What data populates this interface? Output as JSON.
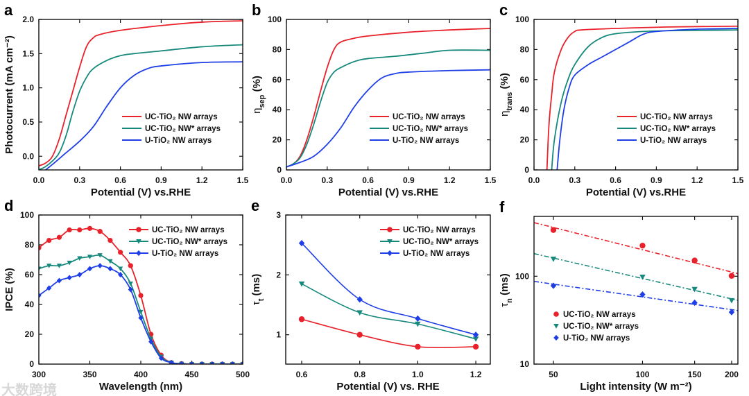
{
  "colors": {
    "red": "#e8212a",
    "teal": "#16897c",
    "blue": "#1f3fe6"
  },
  "watermark": "大数跨境",
  "legend_labels": [
    "UC-TiO₂ NW arrays",
    "UC-TiO₂ NW* arrays",
    "U-TiO₂ NW arrays"
  ],
  "chart_data": [
    {
      "panel": "a",
      "type": "line",
      "xlabel": "Potential (V) vs.RHE",
      "ylabel": "Photocurrent (mA cm⁻²)",
      "ylabel_sub": "",
      "xlim": [
        0,
        1.5
      ],
      "ylim": [
        -0.2,
        2.0
      ],
      "xticks": [
        0,
        0.3,
        0.6,
        0.9,
        1.2,
        1.5
      ],
      "xtick_labels": [
        "0.0",
        "0.3",
        "0.6",
        "0.9",
        "1.2",
        "1.5"
      ],
      "yticks": [
        0,
        0.5,
        1.0,
        1.5,
        2.0
      ],
      "ytick_labels": [
        "0.0",
        "0.5",
        "1.0",
        "1.5",
        "2.0"
      ],
      "legend": "bottom-right",
      "series": [
        {
          "name": "UC-TiO₂ NW arrays",
          "color": "red",
          "x": [
            0,
            0.05,
            0.1,
            0.15,
            0.2,
            0.25,
            0.3,
            0.35,
            0.4,
            0.45,
            0.6,
            0.9,
            1.2,
            1.5
          ],
          "y": [
            -0.14,
            -0.1,
            0,
            0.25,
            0.6,
            0.95,
            1.3,
            1.6,
            1.73,
            1.78,
            1.84,
            1.91,
            1.96,
            1.98
          ]
        },
        {
          "name": "UC-TiO₂ NW* arrays",
          "color": "teal",
          "x": [
            0,
            0.05,
            0.1,
            0.15,
            0.2,
            0.25,
            0.3,
            0.35,
            0.4,
            0.5,
            0.6,
            0.7,
            0.9,
            1.2,
            1.5
          ],
          "y": [
            -0.2,
            -0.15,
            -0.07,
            0.05,
            0.3,
            0.65,
            0.95,
            1.15,
            1.28,
            1.4,
            1.47,
            1.5,
            1.54,
            1.6,
            1.63
          ]
        },
        {
          "name": "U-TiO₂ NW arrays",
          "color": "blue",
          "x": [
            0.05,
            0.1,
            0.2,
            0.3,
            0.4,
            0.5,
            0.6,
            0.7,
            0.8,
            0.9,
            1.2,
            1.5
          ],
          "y": [
            -0.2,
            -0.12,
            0.05,
            0.22,
            0.43,
            0.73,
            1.0,
            1.18,
            1.28,
            1.32,
            1.37,
            1.38
          ]
        }
      ]
    },
    {
      "panel": "b",
      "type": "line",
      "xlabel": "Potential (V) vs.RHE",
      "ylabel": "η",
      "ylabel_sub": "sep",
      "ylabel_tail": " (%)",
      "xlim": [
        0,
        1.5
      ],
      "ylim": [
        0,
        100
      ],
      "xticks": [
        0,
        0.3,
        0.6,
        0.9,
        1.2,
        1.5
      ],
      "xtick_labels": [
        "0.0",
        "0.3",
        "0.6",
        "0.9",
        "1.2",
        "1.5"
      ],
      "yticks": [
        0,
        20,
        40,
        60,
        80,
        100
      ],
      "ytick_labels": [
        "0",
        "20",
        "40",
        "60",
        "80",
        "100"
      ],
      "legend": "bottom-right",
      "series": [
        {
          "name": "UC-TiO₂ NW arrays",
          "color": "red",
          "x": [
            0,
            0.05,
            0.1,
            0.15,
            0.2,
            0.25,
            0.3,
            0.35,
            0.4,
            0.5,
            0.6,
            0.9,
            1.2,
            1.5
          ],
          "y": [
            2,
            4,
            9,
            20,
            35,
            52,
            68,
            80,
            85,
            87.5,
            89,
            91.5,
            93,
            94
          ]
        },
        {
          "name": "UC-TiO₂ NW* arrays",
          "color": "teal",
          "x": [
            0,
            0.05,
            0.1,
            0.15,
            0.2,
            0.25,
            0.3,
            0.35,
            0.4,
            0.5,
            0.6,
            0.8,
            1.0,
            1.2,
            1.5
          ],
          "y": [
            2,
            4,
            8,
            17,
            30,
            45,
            58,
            65,
            68,
            72,
            74,
            75.5,
            77.5,
            79.5,
            79.5
          ]
        },
        {
          "name": "U-TiO₂ NW arrays",
          "color": "blue",
          "x": [
            0,
            0.1,
            0.2,
            0.3,
            0.4,
            0.5,
            0.6,
            0.7,
            0.8,
            0.9,
            1.2,
            1.5
          ],
          "y": [
            2,
            5,
            9,
            17,
            28,
            42,
            53,
            61,
            64,
            65,
            66,
            66.5
          ]
        }
      ]
    },
    {
      "panel": "c",
      "type": "line",
      "xlabel": "Potential (V) vs.RHE",
      "ylabel": "η",
      "ylabel_sub": "trans",
      "ylabel_tail": " (%)",
      "xlim": [
        0,
        1.5
      ],
      "ylim": [
        0,
        100
      ],
      "xticks": [
        0,
        0.3,
        0.6,
        0.9,
        1.2,
        1.5
      ],
      "xtick_labels": [
        "0.0",
        "0.3",
        "0.6",
        "0.9",
        "1.2",
        "1.5"
      ],
      "yticks": [
        0,
        20,
        40,
        60,
        80,
        100
      ],
      "ytick_labels": [
        "0",
        "20",
        "40",
        "60",
        "80",
        "100"
      ],
      "legend": "bottom-right",
      "series": [
        {
          "name": "UC-TiO₂ NW arrays",
          "color": "red",
          "x": [
            0.095,
            0.11,
            0.13,
            0.15,
            0.2,
            0.25,
            0.3,
            0.35,
            0.6,
            1.0,
            1.5
          ],
          "y": [
            0,
            30,
            50,
            65,
            80,
            88,
            92,
            93,
            94,
            95,
            95.5
          ]
        },
        {
          "name": "UC-TiO₂ NW* arrays",
          "color": "teal",
          "x": [
            0.13,
            0.15,
            0.2,
            0.25,
            0.3,
            0.4,
            0.5,
            0.6,
            0.8,
            1.0,
            1.5
          ],
          "y": [
            0,
            20,
            45,
            60,
            70,
            82,
            88,
            90.5,
            92,
            92.5,
            93
          ]
        },
        {
          "name": "U-TiO₂ NW arrays",
          "color": "blue",
          "x": [
            0.17,
            0.19,
            0.22,
            0.26,
            0.3,
            0.4,
            0.5,
            0.6,
            0.7,
            0.8,
            0.9,
            1.2,
            1.5
          ],
          "y": [
            0,
            20,
            40,
            55,
            63,
            70,
            75,
            80,
            85,
            90,
            92,
            93.5,
            94
          ]
        }
      ]
    },
    {
      "panel": "d",
      "type": "line",
      "xlabel": "Wavelength (nm)",
      "ylabel": "IPCE (%)",
      "ylabel_sub": "",
      "xlim": [
        300,
        500
      ],
      "ylim": [
        0,
        100
      ],
      "xticks": [
        300,
        350,
        400,
        450,
        500
      ],
      "xtick_labels": [
        "300",
        "350",
        "400",
        "450",
        "500"
      ],
      "yticks": [
        0,
        20,
        40,
        60,
        80,
        100
      ],
      "ytick_labels": [
        "0",
        "20",
        "40",
        "60",
        "80",
        "100"
      ],
      "legend": "top-right",
      "series": [
        {
          "name": "UC-TiO₂ NW arrays",
          "color": "red",
          "marker": "circle",
          "x": [
            300,
            310,
            320,
            330,
            340,
            350,
            360,
            370,
            380,
            390,
            400,
            410,
            420,
            430,
            440,
            450,
            460,
            470,
            480,
            490,
            500
          ],
          "y": [
            78,
            83,
            85,
            90,
            90,
            91,
            89,
            83,
            75,
            66,
            46,
            20,
            6,
            1,
            0.3,
            0,
            0,
            0,
            0,
            0,
            0
          ]
        },
        {
          "name": "UC-TiO₂ NW* arrays",
          "color": "teal",
          "marker": "triangle-down",
          "x": [
            300,
            310,
            320,
            330,
            340,
            350,
            360,
            370,
            380,
            390,
            400,
            410,
            420,
            430,
            440,
            450,
            460,
            470,
            480,
            490,
            500
          ],
          "y": [
            64,
            66,
            66,
            68,
            71,
            72,
            73,
            69,
            64,
            54,
            35,
            17,
            5,
            1,
            0.2,
            0,
            0,
            0,
            0,
            0,
            0
          ]
        },
        {
          "name": "U-TiO₂ NW arrays",
          "color": "blue",
          "marker": "diamond",
          "x": [
            300,
            310,
            320,
            330,
            340,
            350,
            360,
            370,
            380,
            390,
            400,
            410,
            420,
            430,
            440,
            450,
            460,
            470,
            480,
            490,
            500
          ],
          "y": [
            46,
            51,
            56,
            58,
            60,
            64,
            66,
            64,
            60,
            50,
            31,
            15,
            4,
            1,
            0.2,
            0,
            0,
            0,
            0,
            0,
            0
          ]
        }
      ]
    },
    {
      "panel": "e",
      "type": "scatter",
      "xlabel": "Potential (V) vs. RHE",
      "ylabel": "τ",
      "ylabel_sub": "t",
      "ylabel_tail": " (ms)",
      "xlim": [
        0.545,
        1.25
      ],
      "ylim": [
        0.51,
        3
      ],
      "xticks": [
        0.6,
        0.8,
        1.0,
        1.2
      ],
      "xtick_labels": [
        "0.6",
        "0.8",
        "1.0",
        "1.2"
      ],
      "yticks": [
        1,
        2,
        3
      ],
      "ytick_labels": [
        "1",
        "2",
        "3"
      ],
      "legend": "top-right",
      "fit": "smooth",
      "series": [
        {
          "name": "UC-TiO₂ NW arrays",
          "color": "red",
          "marker": "circle",
          "x": [
            0.6,
            0.8,
            1.0,
            1.2
          ],
          "y": [
            1.26,
            1.0,
            0.8,
            0.8
          ]
        },
        {
          "name": "UC-TiO₂ NW* arrays",
          "color": "teal",
          "marker": "triangle-down",
          "x": [
            0.6,
            0.8,
            1.0,
            1.2
          ],
          "y": [
            1.85,
            1.37,
            1.18,
            0.93
          ]
        },
        {
          "name": "U-TiO₂ NW arrays",
          "color": "blue",
          "marker": "diamond",
          "x": [
            0.6,
            0.8,
            1.0,
            1.2
          ],
          "y": [
            2.53,
            1.59,
            1.27,
            1.0
          ]
        }
      ]
    },
    {
      "panel": "f",
      "type": "scatter",
      "xlabel": "Light intensity (W m⁻²)",
      "ylabel": "τ",
      "ylabel_sub": "n",
      "ylabel_tail": " (ms)",
      "xscale": "log",
      "yscale": "log",
      "xlim": [
        43,
        210
      ],
      "ylim": [
        10,
        480
      ],
      "xticks": [
        50,
        100,
        150,
        200
      ],
      "xtick_labels": [
        "50",
        "100",
        "150",
        "200"
      ],
      "yticks": [
        10,
        100
      ],
      "ytick_labels": [
        "10",
        "100"
      ],
      "legend": "bottom-left",
      "fit": "loglinear-dashdot",
      "series": [
        {
          "name": "UC-TiO₂ NW arrays",
          "color": "red",
          "marker": "circle",
          "x": [
            50,
            100,
            150,
            200
          ],
          "y": [
            336,
            223,
            151,
            101
          ]
        },
        {
          "name": "UC-TiO₂ NW* arrays",
          "color": "teal",
          "marker": "triangle-down",
          "x": [
            50,
            100,
            150,
            200
          ],
          "y": [
            157,
            98,
            71,
            53
          ]
        },
        {
          "name": "U-TiO₂ NW arrays",
          "color": "blue",
          "marker": "diamond",
          "x": [
            50,
            100,
            150,
            200
          ],
          "y": [
            78,
            62,
            50,
            39
          ]
        }
      ]
    }
  ]
}
